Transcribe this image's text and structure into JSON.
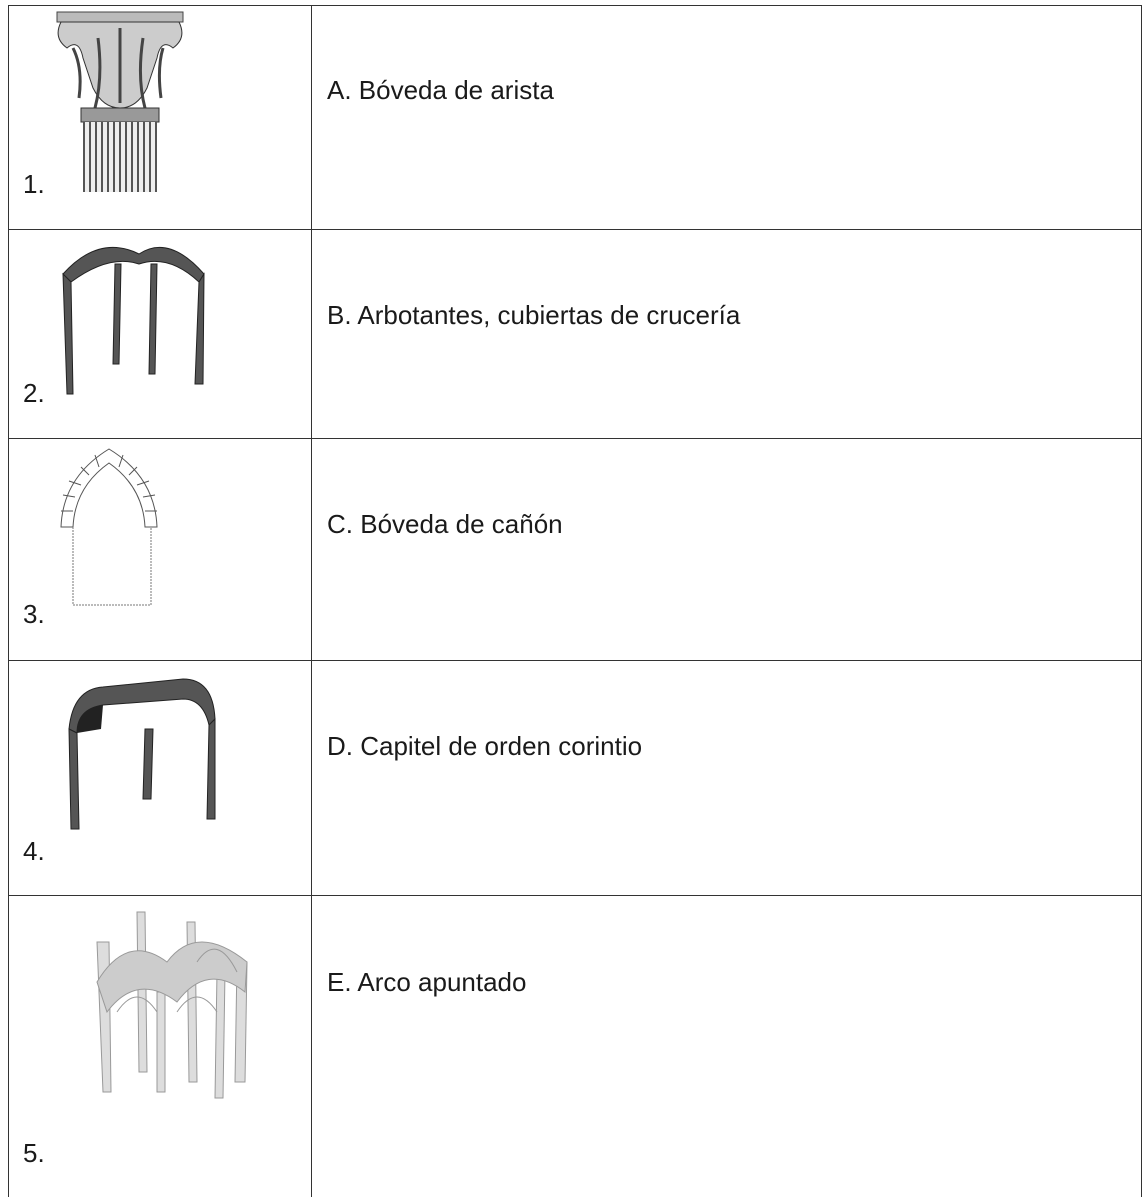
{
  "table": {
    "rows": [
      [
        "1.",
        "A. Bóveda de arista"
      ],
      [
        "2.",
        "B. Arbotantes, cubiertas de crucería"
      ],
      [
        "3.",
        "C. Bóveda de cañón"
      ],
      [
        "4.",
        "D. Capitel de orden corintio"
      ],
      [
        "5.",
        "E. Arco apuntado"
      ]
    ]
  }
}
